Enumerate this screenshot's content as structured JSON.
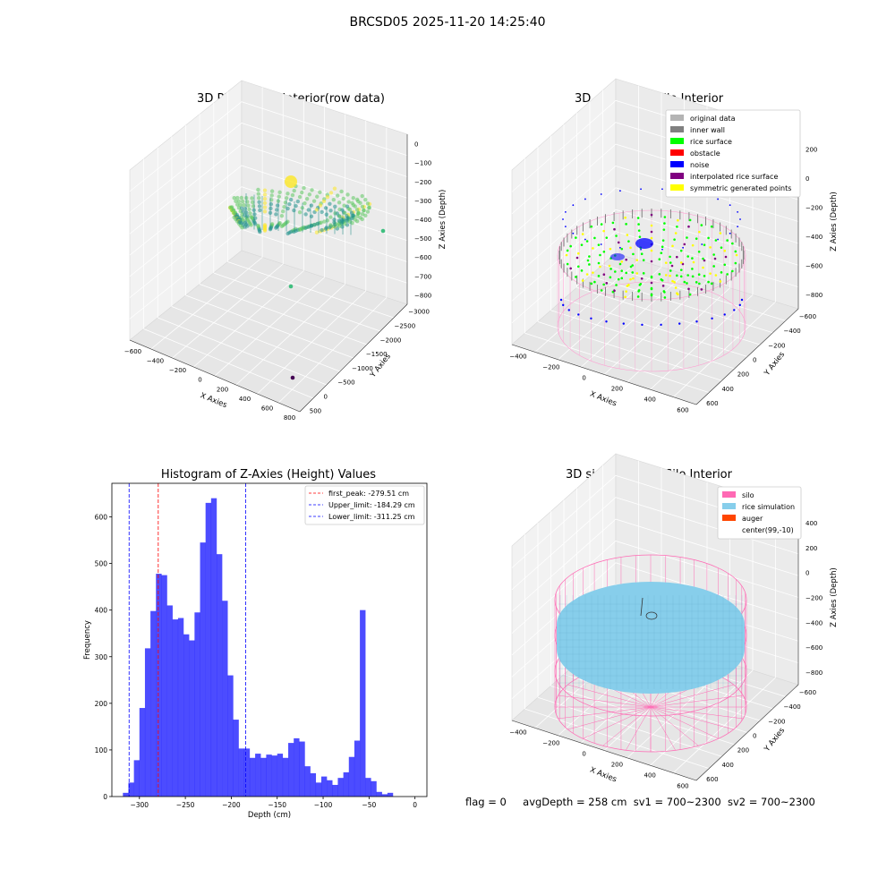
{
  "figure": {
    "suptitle": "BRCSD05 2025-11-20 14:25:40",
    "status": {
      "flag": "flag = 0",
      "avg_depth": "avgDepth = 258 cm",
      "sv1": "sv1 = 700~2300",
      "sv2": "sv2 = 700~2300"
    }
  },
  "chart_data": [
    {
      "type": "scatter",
      "title": "3D Plot of Silo Interior(row data)",
      "xlabel": "X Axies",
      "ylabel": "Y Axies",
      "zlabel": "Z Axies (Depth)",
      "x_ticks": [
        "−600",
        "−400",
        "−200",
        "0",
        "200",
        "400",
        "600",
        "800"
      ],
      "y_ticks": [
        "500",
        "0",
        "−500",
        "−1000",
        "−1500",
        "−2000",
        "−2500",
        "−3000"
      ],
      "z_ticks": [
        "0",
        "−100",
        "−200",
        "−300",
        "−400",
        "−500",
        "−600",
        "−700",
        "−800"
      ],
      "xlim": [
        -650,
        850
      ],
      "ylim": [
        -3200,
        700
      ],
      "zlim": [
        -850,
        50
      ],
      "colormap": "viridis",
      "description_points": [
        {
          "x": 80,
          "y": 200,
          "z": -320,
          "color": "#3fbf7f"
        },
        {
          "x": 300,
          "y": -2900,
          "z": -580,
          "color": "#440154"
        },
        {
          "x": -100,
          "y": -1500,
          "z": -700,
          "color": "#3fbf7f"
        }
      ]
    },
    {
      "type": "scatter",
      "title": "3D classify of Silo Interior",
      "xlabel": "X Axies",
      "ylabel": "Y Axies",
      "zlabel": "Z Axies (Depth)",
      "x_ticks": [
        "−400",
        "−200",
        "0",
        "200",
        "400",
        "600"
      ],
      "y_ticks": [
        "600",
        "400",
        "200",
        "0",
        "−200",
        "−400",
        "−600"
      ],
      "z_ticks": [
        "200",
        "0",
        "−200",
        "−400",
        "−600",
        "−800"
      ],
      "legend": [
        {
          "name": "original data",
          "color": "#b4b4b4"
        },
        {
          "name": "inner wall",
          "color": "#808080"
        },
        {
          "name": "rice surface",
          "color": "#00ff00"
        },
        {
          "name": "obstacle",
          "color": "#ff0000"
        },
        {
          "name": "noise",
          "color": "#0000ff"
        },
        {
          "name": "interpolated rice surface",
          "color": "#800080"
        },
        {
          "name": "symmetric generated points",
          "color": "#ffff00"
        }
      ],
      "legend_position": "top-right"
    },
    {
      "type": "bar",
      "title": "Histogram of Z-Axies (Height) Values",
      "xlabel": "Depth (cm)",
      "ylabel": "Frequency",
      "bin_width": 6.0,
      "bin_start": -318,
      "x_range": [
        -330,
        13
      ],
      "ylim": [
        0,
        672
      ],
      "x_ticks": [
        -300,
        -250,
        -200,
        -150,
        -100,
        -50,
        0
      ],
      "y_ticks": [
        0,
        100,
        200,
        300,
        400,
        500,
        600
      ],
      "bar_color": "#0000ff",
      "values": [
        8,
        30,
        78,
        190,
        318,
        398,
        478,
        475,
        410,
        380,
        383,
        348,
        335,
        395,
        545,
        630,
        640,
        520,
        420,
        260,
        165,
        103,
        103,
        83,
        92,
        83,
        90,
        88,
        92,
        83,
        115,
        125,
        118,
        65,
        50,
        30,
        43,
        35,
        25,
        40,
        52,
        85,
        120,
        400,
        40,
        33,
        10,
        5,
        8
      ],
      "vlines": [
        {
          "name": "first_peak: -279.51 cm",
          "x": -279.51,
          "color": "#ff0000"
        },
        {
          "name": "Upper_limit: -184.29 cm",
          "x": -184.29,
          "color": "#0000ff"
        },
        {
          "name": "Lower_limit: -311.25 cm",
          "x": -311.25,
          "color": "#0000ff"
        }
      ],
      "legend_position": "top-right"
    },
    {
      "type": "scatter",
      "title": "3D simulation of Silo Interior",
      "xlabel": "X Axies",
      "ylabel": "Y Axies",
      "zlabel": "Z Axies (Depth)",
      "x_ticks": [
        "−400",
        "−200",
        "0",
        "200",
        "400",
        "600"
      ],
      "y_ticks": [
        "600",
        "400",
        "200",
        "0",
        "−200",
        "−400",
        "−600"
      ],
      "z_ticks": [
        "400",
        "200",
        "0",
        "−200",
        "−400",
        "−600",
        "−800"
      ],
      "legend": [
        {
          "name": "silo",
          "color": "#ff69b4"
        },
        {
          "name": "rice simulation",
          "color": "#87ceeb"
        },
        {
          "name": "auger",
          "color": "#ff4500"
        },
        {
          "name": "center(99,-10)",
          "color": "#ffffff"
        }
      ],
      "legend_position": "top-right"
    }
  ]
}
